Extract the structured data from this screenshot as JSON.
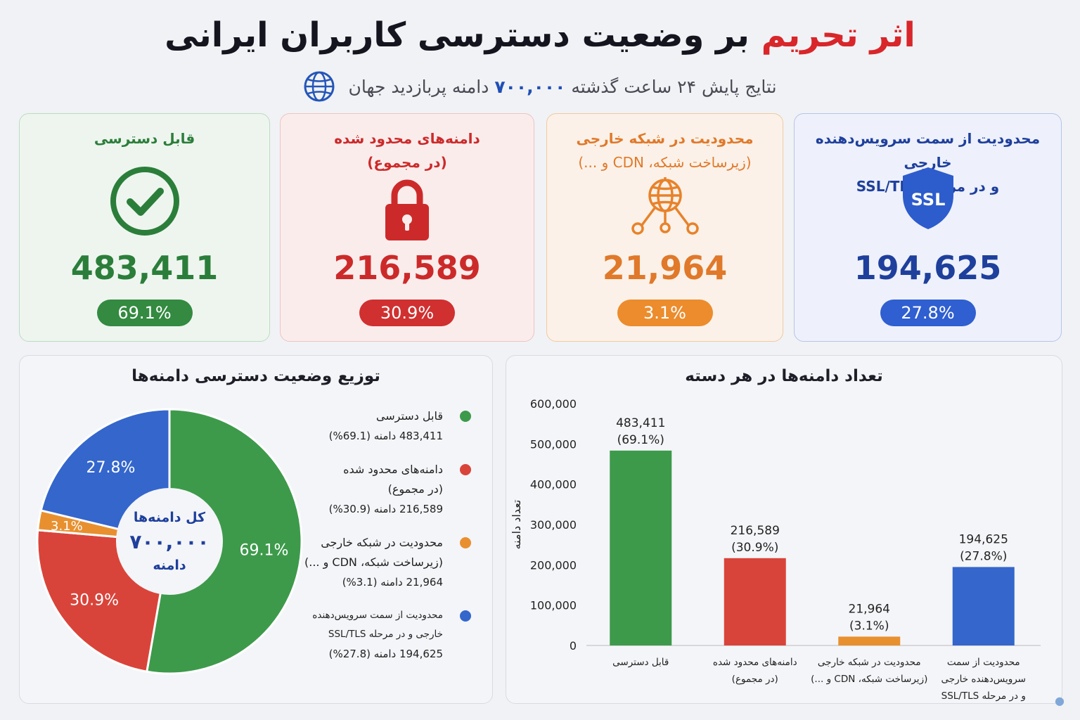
{
  "header": {
    "title_accent": "اثر تحریم",
    "title_rest": "بر وضعیت دسترسی کاربران ایرانی",
    "subtitle_pre": "نتایج پایش ۲۴ ساعت گذشته",
    "subtitle_num": "۷۰۰,۰۰۰",
    "subtitle_post": "دامنه پربازدید جهان",
    "icon": "globe-icon"
  },
  "cards": {
    "ssl": {
      "title_line1": "محدودیت از سمت سرویس‌دهنده خارجی",
      "title_line2": "و در مرحله SSL/TLS",
      "icon_text": "SSL",
      "value": "194,625",
      "percent": "27.8%",
      "color": "#2f5fd0"
    },
    "foreign": {
      "title_line1": "محدودیت در شبکه خارجی",
      "title_line2": "(زیرساخت شبکه، CDN و ...)",
      "value": "21,964",
      "percent": "3.1%",
      "color": "#ec8c2c",
      "icon": "network-globe-icon"
    },
    "restricted": {
      "title_line1": "دامنه‌های محدود شده",
      "title_line2": "(در مجموع)",
      "value": "216,589",
      "percent": "30.9%",
      "color": "#d03030",
      "icon": "lock-icon"
    },
    "access": {
      "title_line1": "قابل دسترسی",
      "value": "483,411",
      "percent": "69.1%",
      "color": "#338a40",
      "icon": "check-circle-icon"
    }
  },
  "pie_panel": {
    "title": "توزیع وضعیت دسترسی دامنه‌ها",
    "center_line1": "کل دامنه‌ها",
    "center_line2": "۷۰۰,۰۰۰",
    "center_line3": "دامنه",
    "legend": [
      {
        "name_lines": [
          "قابل دسترسی"
        ],
        "count": "483,411 دامنه (69.1%)",
        "color": "#3d9a4b"
      },
      {
        "name_lines": [
          "دامنه‌های محدود شده",
          "(در مجموع)"
        ],
        "count": "216,589 دامنه (30.9%)",
        "color": "#d9443a"
      },
      {
        "name_lines": [
          "محدودیت در شبکه خارجی",
          "(زیرساخت شبکه، CDN و ...)"
        ],
        "count": "21,964 دامنه (3.1%)",
        "color": "#e8902f"
      },
      {
        "name_lines": [
          "محدودیت از سمت سرویس‌دهنده",
          "خارجی و در مرحله SSL/TLS"
        ],
        "count": "194,625 دامنه (27.8%)",
        "color": "#3466cc"
      }
    ]
  },
  "bar_panel": {
    "title": "تعداد دامنه‌ها در هر دسته"
  },
  "chart_data": [
    {
      "type": "pie",
      "donut": true,
      "slices": [
        {
          "label": "قابل دسترسی",
          "value": 483411,
          "percent_label": "69.1%",
          "color": "#3d9a4b"
        },
        {
          "label": "دامنه‌های محدود شده (در مجموع)",
          "value": 216589,
          "percent_label": "30.9%",
          "color": "#d9443a"
        },
        {
          "label": "محدودیت در شبکه خارجی",
          "value": 21964,
          "percent_label": "3.1%",
          "color": "#e8902f"
        },
        {
          "label": "محدودیت از سمت سرویس‌دهنده خارجی و در مرحله SSL/TLS",
          "value": 194625,
          "percent_label": "27.8%",
          "color": "#3466cc"
        }
      ]
    },
    {
      "type": "bar",
      "ylabel": "تعداد دامنه",
      "ylim": [
        0,
        600000
      ],
      "yticks": [
        0,
        100000,
        200000,
        300000,
        400000,
        500000,
        600000
      ],
      "ytick_labels": [
        "0",
        "100,000",
        "200,000",
        "300,000",
        "400,000",
        "500,000",
        "600,000"
      ],
      "bars": [
        {
          "category_lines": [
            "قابل دسترسی"
          ],
          "value": 483411,
          "value_label": "483,411",
          "percent_label": "(69.1%)",
          "color": "#3d9a4b"
        },
        {
          "category_lines": [
            "دامنه‌های محدود شده",
            "(در مجموع)"
          ],
          "value": 216589,
          "value_label": "216,589",
          "percent_label": "(30.9%)",
          "color": "#d9443a"
        },
        {
          "category_lines": [
            "محدودیت در شبکه خارجی",
            "(زیرساخت شبکه، CDN و ...)"
          ],
          "value": 21964,
          "value_label": "21,964",
          "percent_label": "(3.1%)",
          "color": "#e8902f"
        },
        {
          "category_lines": [
            "محدودیت از سمت",
            "سرویس‌دهنده خارجی",
            "و در مرحله SSL/TLS"
          ],
          "value": 194625,
          "value_label": "194,625",
          "percent_label": "(27.8%)",
          "color": "#3466cc"
        }
      ]
    }
  ]
}
